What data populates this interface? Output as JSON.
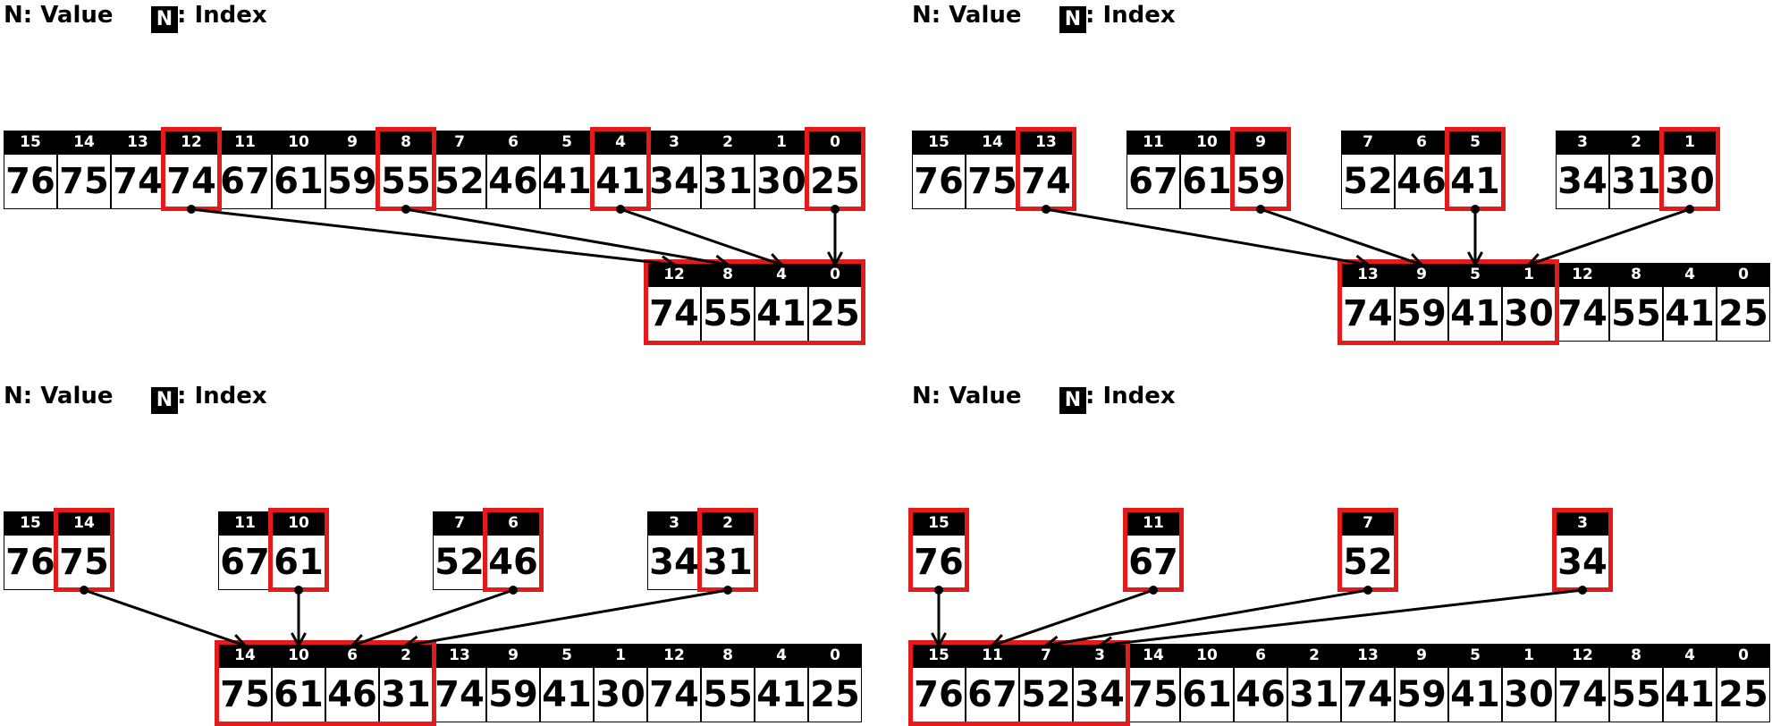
{
  "legend": {
    "value_label": "N: Value",
    "index_badge": "N",
    "index_label": ": Index"
  },
  "panels": [
    {
      "name": "panel-top-left",
      "sources": [
        {
          "cells": [
            {
              "index": "15",
              "value": "76"
            },
            {
              "index": "14",
              "value": "75"
            },
            {
              "index": "13",
              "value": "74"
            },
            {
              "index": "12",
              "value": "74"
            },
            {
              "index": "11",
              "value": "67"
            },
            {
              "index": "10",
              "value": "61"
            },
            {
              "index": "9",
              "value": "59"
            },
            {
              "index": "8",
              "value": "55"
            },
            {
              "index": "7",
              "value": "52"
            },
            {
              "index": "6",
              "value": "46"
            },
            {
              "index": "5",
              "value": "41"
            },
            {
              "index": "4",
              "value": "41"
            },
            {
              "index": "3",
              "value": "34"
            },
            {
              "index": "2",
              "value": "31"
            },
            {
              "index": "1",
              "value": "30"
            },
            {
              "index": "0",
              "value": "25"
            }
          ],
          "highlight": [
            3,
            7,
            11,
            15
          ]
        }
      ],
      "result": {
        "prev": [],
        "new": [
          {
            "index": "12",
            "value": "74"
          },
          {
            "index": "8",
            "value": "55"
          },
          {
            "index": "4",
            "value": "41"
          },
          {
            "index": "0",
            "value": "25"
          }
        ]
      }
    },
    {
      "name": "panel-top-right",
      "sources": [
        {
          "cells": [
            {
              "index": "15",
              "value": "76"
            },
            {
              "index": "14",
              "value": "75"
            },
            {
              "index": "13",
              "value": "74"
            }
          ],
          "highlight": [
            2
          ]
        },
        {
          "cells": [
            {
              "index": "11",
              "value": "67"
            },
            {
              "index": "10",
              "value": "61"
            },
            {
              "index": "9",
              "value": "59"
            }
          ],
          "highlight": [
            2
          ]
        },
        {
          "cells": [
            {
              "index": "7",
              "value": "52"
            },
            {
              "index": "6",
              "value": "46"
            },
            {
              "index": "5",
              "value": "41"
            }
          ],
          "highlight": [
            2
          ]
        },
        {
          "cells": [
            {
              "index": "3",
              "value": "34"
            },
            {
              "index": "2",
              "value": "31"
            },
            {
              "index": "1",
              "value": "30"
            }
          ],
          "highlight": [
            2
          ]
        }
      ],
      "result": {
        "new": [
          {
            "index": "13",
            "value": "74"
          },
          {
            "index": "9",
            "value": "59"
          },
          {
            "index": "5",
            "value": "41"
          },
          {
            "index": "1",
            "value": "30"
          }
        ],
        "prev": [
          {
            "index": "12",
            "value": "74"
          },
          {
            "index": "8",
            "value": "55"
          },
          {
            "index": "4",
            "value": "41"
          },
          {
            "index": "0",
            "value": "25"
          }
        ]
      }
    },
    {
      "name": "panel-bottom-left",
      "sources": [
        {
          "cells": [
            {
              "index": "15",
              "value": "76"
            },
            {
              "index": "14",
              "value": "75"
            }
          ],
          "highlight": [
            1
          ]
        },
        {
          "cells": [
            {
              "index": "11",
              "value": "67"
            },
            {
              "index": "10",
              "value": "61"
            }
          ],
          "highlight": [
            1
          ]
        },
        {
          "cells": [
            {
              "index": "7",
              "value": "52"
            },
            {
              "index": "6",
              "value": "46"
            }
          ],
          "highlight": [
            1
          ]
        },
        {
          "cells": [
            {
              "index": "3",
              "value": "34"
            },
            {
              "index": "2",
              "value": "31"
            }
          ],
          "highlight": [
            1
          ]
        }
      ],
      "result": {
        "new": [
          {
            "index": "14",
            "value": "75"
          },
          {
            "index": "10",
            "value": "61"
          },
          {
            "index": "6",
            "value": "46"
          },
          {
            "index": "2",
            "value": "31"
          }
        ],
        "prev": [
          {
            "index": "13",
            "value": "74"
          },
          {
            "index": "9",
            "value": "59"
          },
          {
            "index": "5",
            "value": "41"
          },
          {
            "index": "1",
            "value": "30"
          },
          {
            "index": "12",
            "value": "74"
          },
          {
            "index": "8",
            "value": "55"
          },
          {
            "index": "4",
            "value": "41"
          },
          {
            "index": "0",
            "value": "25"
          }
        ]
      }
    },
    {
      "name": "panel-bottom-right",
      "sources": [
        {
          "cells": [
            {
              "index": "15",
              "value": "76"
            }
          ],
          "highlight": [
            0
          ]
        },
        {
          "cells": [
            {
              "index": "11",
              "value": "67"
            }
          ],
          "highlight": [
            0
          ]
        },
        {
          "cells": [
            {
              "index": "7",
              "value": "52"
            }
          ],
          "highlight": [
            0
          ]
        },
        {
          "cells": [
            {
              "index": "3",
              "value": "34"
            }
          ],
          "highlight": [
            0
          ]
        }
      ],
      "result": {
        "new": [
          {
            "index": "15",
            "value": "76"
          },
          {
            "index": "11",
            "value": "67"
          },
          {
            "index": "7",
            "value": "52"
          },
          {
            "index": "3",
            "value": "34"
          }
        ],
        "prev": [
          {
            "index": "14",
            "value": "75"
          },
          {
            "index": "10",
            "value": "61"
          },
          {
            "index": "6",
            "value": "46"
          },
          {
            "index": "2",
            "value": "31"
          },
          {
            "index": "13",
            "value": "74"
          },
          {
            "index": "9",
            "value": "59"
          },
          {
            "index": "5",
            "value": "41"
          },
          {
            "index": "1",
            "value": "30"
          },
          {
            "index": "12",
            "value": "74"
          },
          {
            "index": "8",
            "value": "55"
          },
          {
            "index": "4",
            "value": "41"
          },
          {
            "index": "0",
            "value": "25"
          }
        ]
      }
    }
  ]
}
